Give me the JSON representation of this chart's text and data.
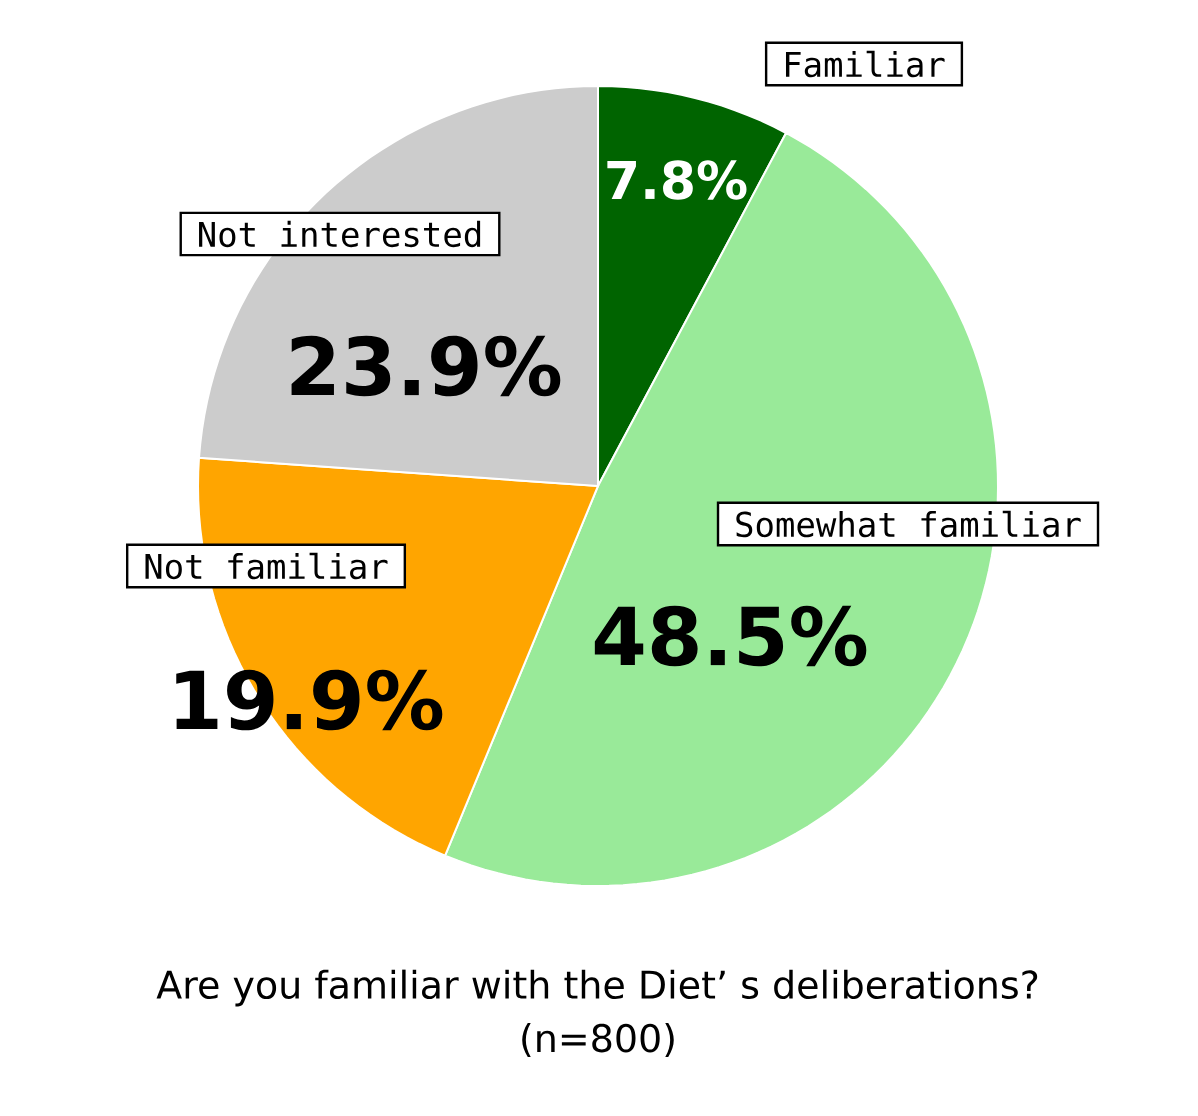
{
  "chart_data": {
    "type": "pie",
    "title": "Are you familiar with the Diet’ s deliberations?",
    "subtitle": "(n=800)",
    "categories": [
      "Familiar",
      "Somewhat familiar",
      "Not familiar",
      "Not interested"
    ],
    "values": [
      7.8,
      48.5,
      19.9,
      23.9
    ],
    "value_labels": [
      "7.8%",
      "48.5%",
      "19.9%",
      "23.9%"
    ],
    "colors": [
      "#006400",
      "#99ea99",
      "#ffa500",
      "#cccccc"
    ]
  }
}
